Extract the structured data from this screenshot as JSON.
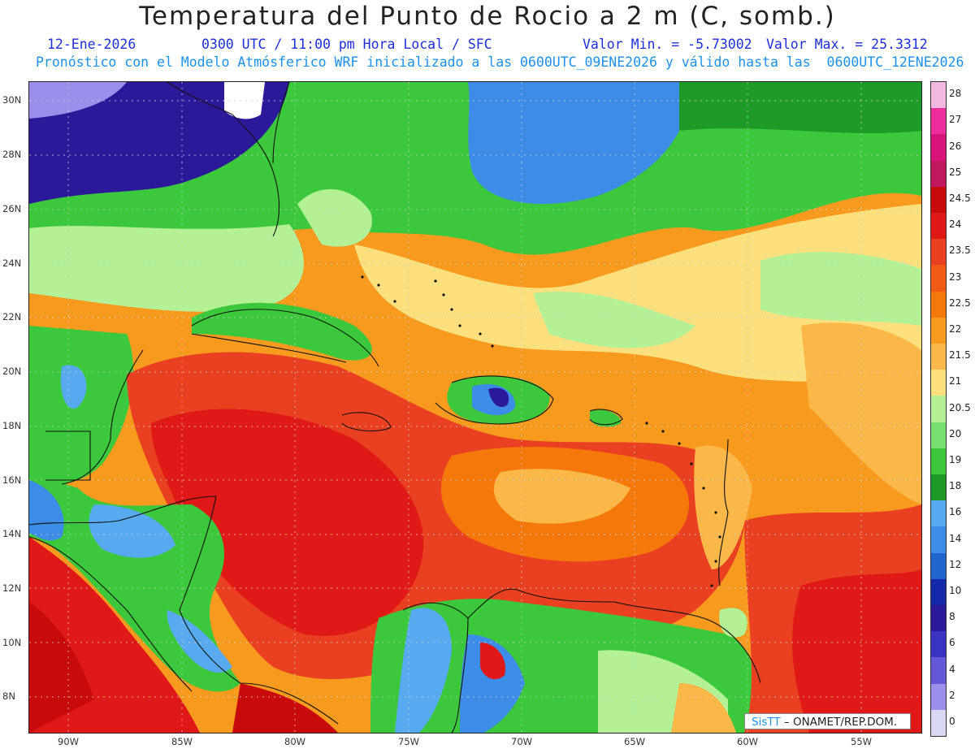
{
  "header": {
    "title": "Temperatura del Punto de Rocio a 2 m (C, somb.)",
    "date": "12-Ene-2026",
    "valid_time": "0300 UTC / 11:00 pm Hora Local / SFC",
    "min_label": "Valor Min. = -5.73002",
    "max_label": "Valor Max. = 25.3312",
    "model_line": "Pronóstico con el Modelo Atmósferico WRF inicializado a las 0600UTC_09ENE2026 y válido hasta las  0600UTC_12ENE2026"
  },
  "axes": {
    "lat_labels": [
      "30N",
      "28N",
      "26N",
      "24N",
      "22N",
      "20N",
      "18N",
      "16N",
      "14N",
      "12N",
      "10N",
      "8N"
    ],
    "lon_labels": [
      "90W",
      "85W",
      "80W",
      "75W",
      "70W",
      "65W",
      "60W",
      "55W"
    ]
  },
  "colorbar": {
    "labels": [
      "28",
      "27",
      "26",
      "25",
      "24.5",
      "24",
      "23.5",
      "23",
      "22.5",
      "22",
      "21.5",
      "21",
      "20.5",
      "20",
      "19",
      "18",
      "16",
      "14",
      "12",
      "10",
      "8",
      "6",
      "4",
      "2",
      "0"
    ],
    "colors": [
      "#f2b8e0",
      "#ee2c9c",
      "#d8147a",
      "#c0185c",
      "#c80a0a",
      "#e01818",
      "#e84020",
      "#f05a14",
      "#f5780a",
      "#f89a1e",
      "#fbb848",
      "#fce07e",
      "#b4f096",
      "#78e070",
      "#3cc83c",
      "#1e9a28",
      "#58aaf0",
      "#3c8ce8",
      "#2064d0",
      "#1428a8",
      "#2a1a9a",
      "#3a34c4",
      "#6258d8",
      "#9a90ec",
      "#d8d8f4"
    ]
  },
  "credit": {
    "brand": "SisTT",
    "text": " – ONAMET/REP.DOM."
  }
}
